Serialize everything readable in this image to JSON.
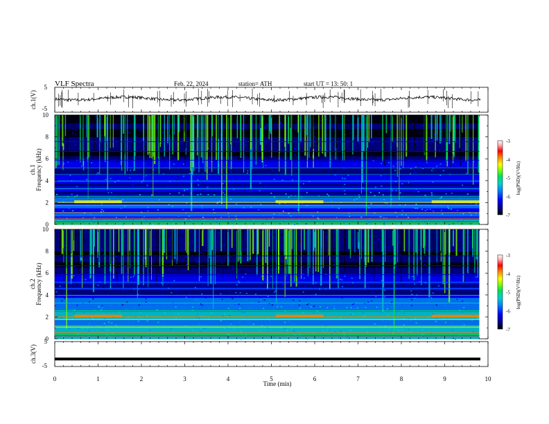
{
  "header": {
    "title": "VLF  Spectra",
    "date": "Feb. 22, 2024",
    "station": "station= ATH",
    "start": "start  UT  =    13: 50: 1"
  },
  "chart_data": [
    {
      "type": "line",
      "name": "ch1-waveform",
      "ylabel": "ch.1(V)",
      "xlim": [
        0,
        10
      ],
      "ylim": [
        -5,
        5
      ],
      "yticks": [
        "5",
        "-5"
      ],
      "baseline": 0.5
    },
    {
      "type": "heatmap",
      "name": "ch1-spectrogram",
      "ylabel_channel": "ch.1",
      "ylabel": "Frequency  (kHz)",
      "xlim": [
        0,
        9.8
      ],
      "ylim": [
        0,
        10
      ],
      "yticks": [
        "0",
        "2",
        "4",
        "6",
        "8",
        "10"
      ],
      "colorbar": {
        "label": "log(PSD)(V²/Hz)",
        "range": [
          -7,
          -3
        ],
        "ticks": [
          "-3",
          "-4",
          "-5",
          "-6",
          "-7"
        ]
      }
    },
    {
      "type": "heatmap",
      "name": "ch2-spectrogram",
      "ylabel_channel": "ch.2",
      "ylabel": "Frequency  (kHz)",
      "xlim": [
        0,
        9.8
      ],
      "ylim": [
        0,
        10
      ],
      "yticks": [
        "0",
        "2",
        "4",
        "6",
        "8",
        "10"
      ],
      "colorbar": {
        "label": "log(PSD)(V²/Hz)",
        "range": [
          -7,
          -3
        ],
        "ticks": [
          "-3",
          "-4",
          "-5",
          "-6",
          "-7"
        ]
      }
    },
    {
      "type": "line",
      "name": "ch3-waveform",
      "ylabel": "ch.3(V)",
      "xlim": [
        0,
        10
      ],
      "ylim": [
        -5,
        5
      ],
      "yticks": [
        "5",
        "-5"
      ],
      "baseline": -2.0
    }
  ],
  "xaxis": {
    "label": "Time  (min)",
    "ticks": [
      "0",
      "1",
      "2",
      "3",
      "4",
      "5",
      "6",
      "7",
      "8",
      "9",
      "10"
    ]
  },
  "colors": {
    "colormap": [
      "#000000",
      "#00007a",
      "#0000ff",
      "#0080ff",
      "#00d0d0",
      "#00e060",
      "#80ff00",
      "#ffff00",
      "#ff8000",
      "#ff0000",
      "#ffb0b0",
      "#ffffff"
    ]
  }
}
